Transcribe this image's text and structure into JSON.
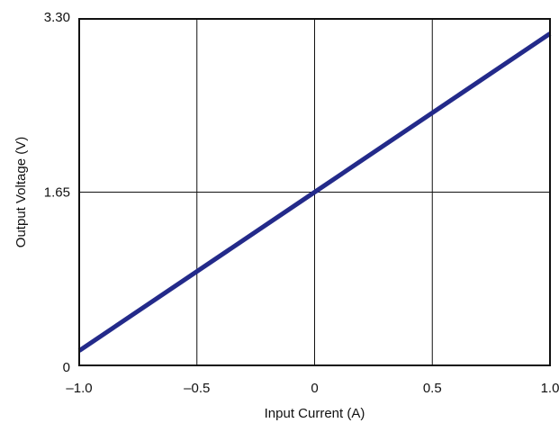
{
  "chart_data": {
    "type": "line",
    "title": "",
    "xlabel": "Input Current (A)",
    "ylabel": "Output Voltage (V)",
    "xlim": [
      -1.0,
      1.0
    ],
    "ylim": [
      0,
      3.3
    ],
    "x_ticks": [
      -1.0,
      -0.5,
      0,
      0.5,
      1.0
    ],
    "x_tick_labels": [
      "–1.0",
      "–0.5",
      "0",
      "0.5",
      "1.0"
    ],
    "y_ticks": [
      0,
      1.65,
      3.3
    ],
    "y_tick_labels": [
      "0",
      "1.65",
      "3.30"
    ],
    "grid": true,
    "legend": "none",
    "series": [
      {
        "color": "#232a8a",
        "x": [
          -1.0,
          0,
          1.0
        ],
        "y": [
          0.14,
          1.65,
          3.16
        ]
      }
    ]
  }
}
